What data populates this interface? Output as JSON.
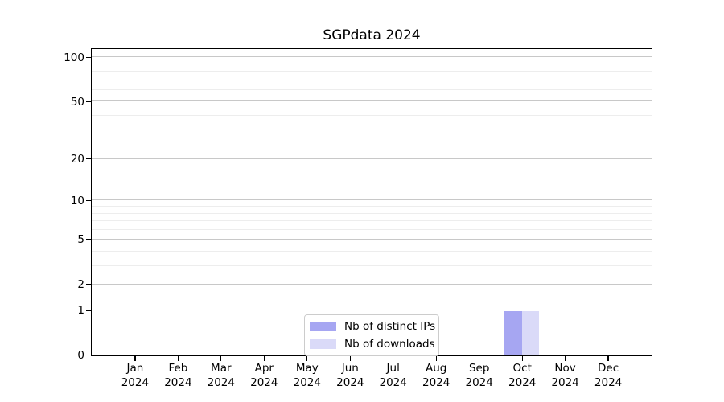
{
  "chart_data": {
    "type": "bar",
    "title": "SGPdata 2024",
    "x_tick_months": [
      "Jan",
      "Feb",
      "Mar",
      "Apr",
      "May",
      "Jun",
      "Jul",
      "Aug",
      "Sep",
      "Oct",
      "Nov",
      "Dec"
    ],
    "x_tick_year": "2024",
    "series": [
      {
        "name": "Nb of distinct IPs",
        "color": "#a6a6f2",
        "values": [
          0,
          0,
          0,
          0,
          0,
          0,
          0,
          0,
          0,
          1,
          0,
          0
        ]
      },
      {
        "name": "Nb of downloads",
        "color": "#dadaf8",
        "values": [
          0,
          0,
          0,
          0,
          0,
          0,
          0,
          0,
          0,
          1,
          0,
          0
        ]
      }
    ],
    "xlabel": "",
    "ylabel": "",
    "y_scale": "log1p",
    "y_ticks": [
      0,
      1,
      2,
      5,
      10,
      20,
      50,
      100
    ],
    "y_minor_ticks": [
      3,
      4,
      6,
      7,
      8,
      9,
      30,
      40,
      60,
      70,
      80,
      90
    ],
    "y_axis_top": 114,
    "ylim": [
      0,
      114
    ],
    "grid": "horizontal",
    "legend_position": "lower center"
  }
}
